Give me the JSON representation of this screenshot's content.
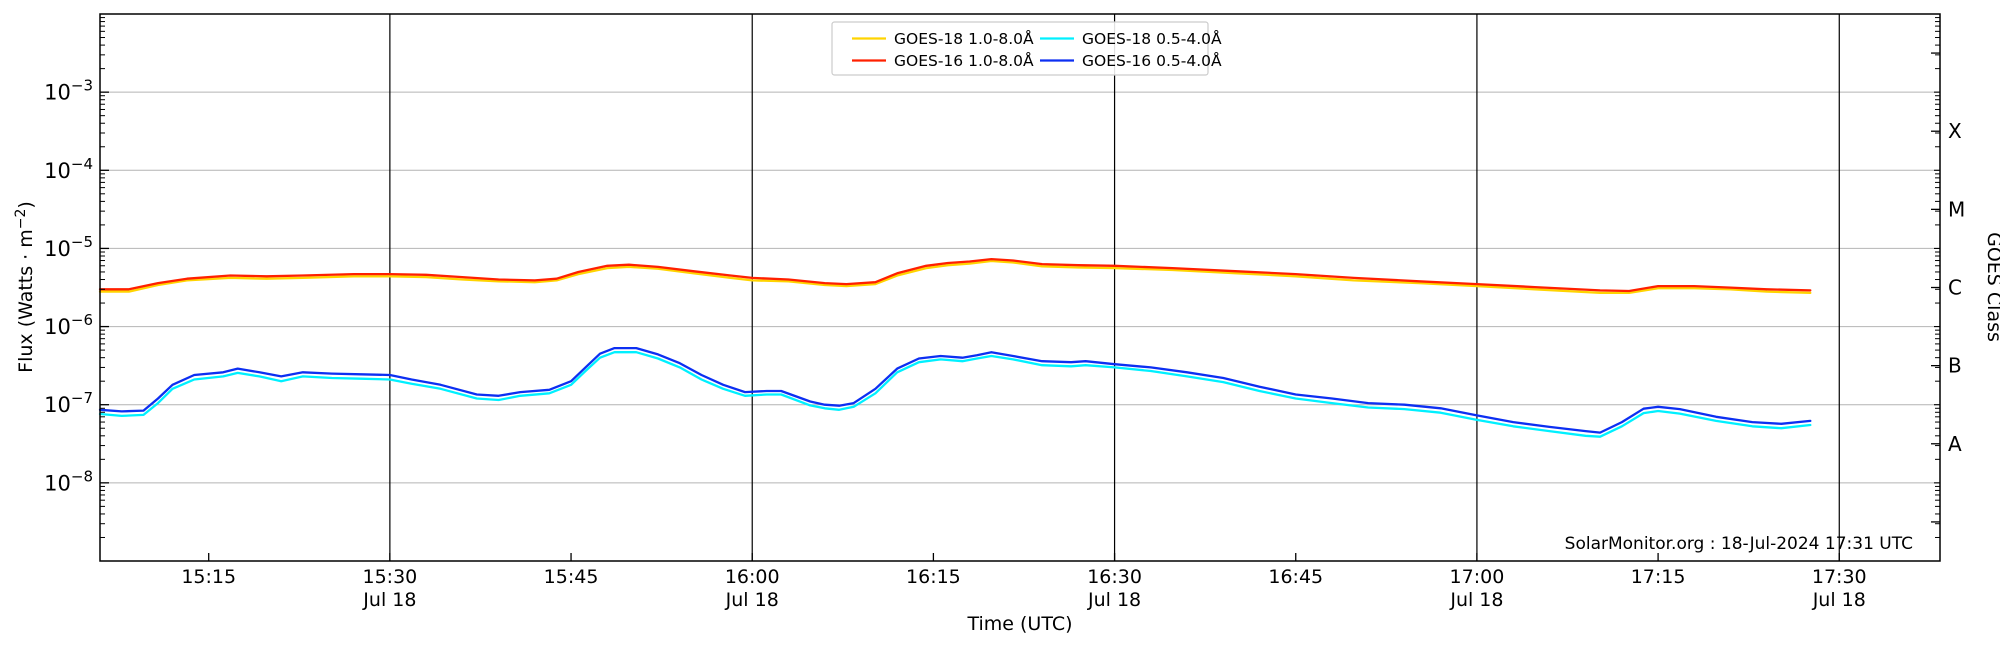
{
  "chart_data": {
    "type": "line",
    "title": "",
    "xlabel": "Time (UTC)",
    "ylabel": "Flux (Watts · m⁻²)",
    "ylabel_parts": {
      "pre": "Flux (Watts · m",
      "sup": "−2",
      "post": ")"
    },
    "ylabel_right": "GOES Class",
    "y_scale": "log",
    "y_range": [
      1e-09,
      0.01
    ],
    "x_range_hours": [
      15.1,
      17.639
    ],
    "grid_on": true,
    "watermark": "SolarMonitor.org : 18-Jul-2024 17:31 UTC",
    "x_ticks": [
      {
        "t": 15.25,
        "label": "15:15",
        "date": null
      },
      {
        "t": 15.5,
        "label": "15:30",
        "date": "Jul 18"
      },
      {
        "t": 15.75,
        "label": "15:45",
        "date": null
      },
      {
        "t": 16.0,
        "label": "16:00",
        "date": "Jul 18"
      },
      {
        "t": 16.25,
        "label": "16:15",
        "date": null
      },
      {
        "t": 16.5,
        "label": "16:30",
        "date": "Jul 18"
      },
      {
        "t": 16.75,
        "label": "16:45",
        "date": null
      },
      {
        "t": 17.0,
        "label": "17:00",
        "date": "Jul 18"
      },
      {
        "t": 17.25,
        "label": "17:15",
        "date": null
      },
      {
        "t": 17.5,
        "label": "17:30",
        "date": "Jul 18"
      }
    ],
    "date_lines_hours": [
      15.5,
      16.0,
      16.5,
      17.0,
      17.5
    ],
    "y_ticks": [
      {
        "exp": -3,
        "base": "10",
        "sup": "−3"
      },
      {
        "exp": -4,
        "base": "10",
        "sup": "−4"
      },
      {
        "exp": -5,
        "base": "10",
        "sup": "−5"
      },
      {
        "exp": -6,
        "base": "10",
        "sup": "−6"
      },
      {
        "exp": -7,
        "base": "10",
        "sup": "−7"
      },
      {
        "exp": -8,
        "base": "10",
        "sup": "−8"
      }
    ],
    "goes_classes": [
      {
        "label": "X",
        "center_log_flux": -3.5
      },
      {
        "label": "M",
        "center_log_flux": -4.5
      },
      {
        "label": "C",
        "center_log_flux": -5.5
      },
      {
        "label": "B",
        "center_log_flux": -6.5
      },
      {
        "label": "A",
        "center_log_flux": -7.5
      }
    ],
    "legend": [
      {
        "name": "GOES-18 1.0-8.0Å",
        "color": "#ffd400"
      },
      {
        "name": "GOES-16 1.0-8.0Å",
        "color": "#ff2000"
      },
      {
        "name": "GOES-18 0.5-4.0Å",
        "color": "#00f0ff"
      },
      {
        "name": "GOES-16 0.5-4.0Å",
        "color": "#0c2ff2"
      }
    ],
    "series": [
      {
        "name": "GOES-18 1.0-8.0Å",
        "color": "#ffd400",
        "width": 2.3,
        "points": [
          [
            15.1,
            2.8e-06
          ],
          [
            15.14,
            2.8e-06
          ],
          [
            15.18,
            3.4e-06
          ],
          [
            15.22,
            3.9e-06
          ],
          [
            15.28,
            4.2e-06
          ],
          [
            15.33,
            4.1e-06
          ],
          [
            15.38,
            4.2e-06
          ],
          [
            15.45,
            4.4e-06
          ],
          [
            15.5,
            4.4e-06
          ],
          [
            15.55,
            4.3e-06
          ],
          [
            15.6,
            4e-06
          ],
          [
            15.65,
            3.8e-06
          ],
          [
            15.7,
            3.7e-06
          ],
          [
            15.73,
            3.9e-06
          ],
          [
            15.76,
            4.7e-06
          ],
          [
            15.8,
            5.6e-06
          ],
          [
            15.83,
            5.8e-06
          ],
          [
            15.87,
            5.5e-06
          ],
          [
            15.92,
            4.8e-06
          ],
          [
            15.97,
            4.2e-06
          ],
          [
            16.0,
            3.9e-06
          ],
          [
            16.05,
            3.8e-06
          ],
          [
            16.1,
            3.4e-06
          ],
          [
            16.13,
            3.3e-06
          ],
          [
            16.17,
            3.5e-06
          ],
          [
            16.2,
            4.5e-06
          ],
          [
            16.24,
            5.6e-06
          ],
          [
            16.27,
            6.1e-06
          ],
          [
            16.3,
            6.4e-06
          ],
          [
            16.33,
            6.9e-06
          ],
          [
            16.36,
            6.6e-06
          ],
          [
            16.4,
            5.9e-06
          ],
          [
            16.45,
            5.7e-06
          ],
          [
            16.5,
            5.6e-06
          ],
          [
            16.58,
            5.3e-06
          ],
          [
            16.67,
            4.8e-06
          ],
          [
            16.75,
            4.4e-06
          ],
          [
            16.83,
            3.9e-06
          ],
          [
            16.92,
            3.6e-06
          ],
          [
            17.0,
            3.3e-06
          ],
          [
            17.08,
            3e-06
          ],
          [
            17.17,
            2.7e-06
          ],
          [
            17.21,
            2.7e-06
          ],
          [
            17.25,
            3.1e-06
          ],
          [
            17.3,
            3.1e-06
          ],
          [
            17.35,
            3e-06
          ],
          [
            17.4,
            2.8e-06
          ],
          [
            17.46,
            2.7e-06
          ]
        ]
      },
      {
        "name": "GOES-18 0.5-4.0Å",
        "color": "#00f0ff",
        "width": 2.3,
        "points": [
          [
            15.1,
            7.6e-08
          ],
          [
            15.13,
            7.2e-08
          ],
          [
            15.16,
            7.4e-08
          ],
          [
            15.18,
            1.05e-07
          ],
          [
            15.2,
            1.6e-07
          ],
          [
            15.23,
            2.1e-07
          ],
          [
            15.27,
            2.3e-07
          ],
          [
            15.29,
            2.55e-07
          ],
          [
            15.32,
            2.3e-07
          ],
          [
            15.35,
            2e-07
          ],
          [
            15.38,
            2.3e-07
          ],
          [
            15.42,
            2.2e-07
          ],
          [
            15.46,
            2.15e-07
          ],
          [
            15.5,
            2.1e-07
          ],
          [
            15.53,
            1.85e-07
          ],
          [
            15.57,
            1.6e-07
          ],
          [
            15.62,
            1.2e-07
          ],
          [
            15.65,
            1.15e-07
          ],
          [
            15.68,
            1.3e-07
          ],
          [
            15.72,
            1.4e-07
          ],
          [
            15.75,
            1.8e-07
          ],
          [
            15.77,
            2.7e-07
          ],
          [
            15.79,
            4e-07
          ],
          [
            15.81,
            4.7e-07
          ],
          [
            15.84,
            4.7e-07
          ],
          [
            15.87,
            3.9e-07
          ],
          [
            15.9,
            3e-07
          ],
          [
            15.93,
            2.1e-07
          ],
          [
            15.96,
            1.6e-07
          ],
          [
            15.99,
            1.3e-07
          ],
          [
            16.02,
            1.35e-07
          ],
          [
            16.04,
            1.35e-07
          ],
          [
            16.08,
            9.8e-08
          ],
          [
            16.1,
            9e-08
          ],
          [
            16.12,
            8.6e-08
          ],
          [
            16.14,
            9.4e-08
          ],
          [
            16.17,
            1.4e-07
          ],
          [
            16.2,
            2.6e-07
          ],
          [
            16.23,
            3.5e-07
          ],
          [
            16.26,
            3.8e-07
          ],
          [
            16.29,
            3.6e-07
          ],
          [
            16.31,
            3.9e-07
          ],
          [
            16.33,
            4.2e-07
          ],
          [
            16.36,
            3.8e-07
          ],
          [
            16.4,
            3.2e-07
          ],
          [
            16.44,
            3.1e-07
          ],
          [
            16.46,
            3.2e-07
          ],
          [
            16.5,
            3e-07
          ],
          [
            16.55,
            2.7e-07
          ],
          [
            16.6,
            2.3e-07
          ],
          [
            16.65,
            1.95e-07
          ],
          [
            16.7,
            1.5e-07
          ],
          [
            16.75,
            1.2e-07
          ],
          [
            16.8,
            1.05e-07
          ],
          [
            16.85,
            9.2e-08
          ],
          [
            16.9,
            8.8e-08
          ],
          [
            16.95,
            7.9e-08
          ],
          [
            17.0,
            6.4e-08
          ],
          [
            17.05,
            5.3e-08
          ],
          [
            17.1,
            4.6e-08
          ],
          [
            17.15,
            4e-08
          ],
          [
            17.17,
            3.9e-08
          ],
          [
            17.2,
            5.3e-08
          ],
          [
            17.23,
            7.8e-08
          ],
          [
            17.25,
            8.3e-08
          ],
          [
            17.28,
            7.7e-08
          ],
          [
            17.33,
            6.2e-08
          ],
          [
            17.38,
            5.3e-08
          ],
          [
            17.42,
            5e-08
          ],
          [
            17.46,
            5.5e-08
          ]
        ]
      },
      {
        "name": "GOES-16 1.0-8.0Å",
        "color": "#ff2000",
        "width": 2.3,
        "points": [
          [
            15.1,
            3e-06
          ],
          [
            15.14,
            3e-06
          ],
          [
            15.18,
            3.6e-06
          ],
          [
            15.22,
            4.1e-06
          ],
          [
            15.28,
            4.5e-06
          ],
          [
            15.33,
            4.4e-06
          ],
          [
            15.38,
            4.5e-06
          ],
          [
            15.45,
            4.7e-06
          ],
          [
            15.5,
            4.7e-06
          ],
          [
            15.55,
            4.6e-06
          ],
          [
            15.6,
            4.3e-06
          ],
          [
            15.65,
            4e-06
          ],
          [
            15.7,
            3.9e-06
          ],
          [
            15.73,
            4.1e-06
          ],
          [
            15.76,
            5e-06
          ],
          [
            15.8,
            6e-06
          ],
          [
            15.83,
            6.2e-06
          ],
          [
            15.87,
            5.8e-06
          ],
          [
            15.92,
            5.1e-06
          ],
          [
            15.97,
            4.5e-06
          ],
          [
            16.0,
            4.2e-06
          ],
          [
            16.05,
            4e-06
          ],
          [
            16.1,
            3.6e-06
          ],
          [
            16.13,
            3.5e-06
          ],
          [
            16.17,
            3.7e-06
          ],
          [
            16.2,
            4.8e-06
          ],
          [
            16.24,
            6e-06
          ],
          [
            16.27,
            6.5e-06
          ],
          [
            16.3,
            6.8e-06
          ],
          [
            16.33,
            7.3e-06
          ],
          [
            16.36,
            7e-06
          ],
          [
            16.4,
            6.3e-06
          ],
          [
            16.45,
            6.1e-06
          ],
          [
            16.5,
            6e-06
          ],
          [
            16.58,
            5.6e-06
          ],
          [
            16.67,
            5.1e-06
          ],
          [
            16.75,
            4.7e-06
          ],
          [
            16.83,
            4.2e-06
          ],
          [
            16.92,
            3.8e-06
          ],
          [
            17.0,
            3.5e-06
          ],
          [
            17.08,
            3.2e-06
          ],
          [
            17.17,
            2.9e-06
          ],
          [
            17.21,
            2.85e-06
          ],
          [
            17.25,
            3.3e-06
          ],
          [
            17.3,
            3.3e-06
          ],
          [
            17.35,
            3.15e-06
          ],
          [
            17.4,
            3e-06
          ],
          [
            17.46,
            2.9e-06
          ]
        ]
      },
      {
        "name": "GOES-16 0.5-4.0Å",
        "color": "#0c2ff2",
        "width": 2.3,
        "points": [
          [
            15.1,
            8.6e-08
          ],
          [
            15.13,
            8.2e-08
          ],
          [
            15.16,
            8.4e-08
          ],
          [
            15.18,
            1.2e-07
          ],
          [
            15.2,
            1.8e-07
          ],
          [
            15.23,
            2.4e-07
          ],
          [
            15.27,
            2.6e-07
          ],
          [
            15.29,
            2.9e-07
          ],
          [
            15.32,
            2.6e-07
          ],
          [
            15.35,
            2.3e-07
          ],
          [
            15.38,
            2.6e-07
          ],
          [
            15.42,
            2.5e-07
          ],
          [
            15.46,
            2.45e-07
          ],
          [
            15.5,
            2.4e-07
          ],
          [
            15.53,
            2.1e-07
          ],
          [
            15.57,
            1.8e-07
          ],
          [
            15.62,
            1.35e-07
          ],
          [
            15.65,
            1.3e-07
          ],
          [
            15.68,
            1.45e-07
          ],
          [
            15.72,
            1.55e-07
          ],
          [
            15.75,
            2e-07
          ],
          [
            15.77,
            3e-07
          ],
          [
            15.79,
            4.5e-07
          ],
          [
            15.81,
            5.3e-07
          ],
          [
            15.84,
            5.3e-07
          ],
          [
            15.87,
            4.4e-07
          ],
          [
            15.9,
            3.4e-07
          ],
          [
            15.93,
            2.4e-07
          ],
          [
            15.96,
            1.8e-07
          ],
          [
            15.99,
            1.45e-07
          ],
          [
            16.02,
            1.5e-07
          ],
          [
            16.04,
            1.5e-07
          ],
          [
            16.08,
            1.1e-07
          ],
          [
            16.1,
            1e-07
          ],
          [
            16.12,
            9.7e-08
          ],
          [
            16.14,
            1.05e-07
          ],
          [
            16.17,
            1.6e-07
          ],
          [
            16.2,
            2.9e-07
          ],
          [
            16.23,
            3.9e-07
          ],
          [
            16.26,
            4.2e-07
          ],
          [
            16.29,
            4e-07
          ],
          [
            16.31,
            4.3e-07
          ],
          [
            16.33,
            4.7e-07
          ],
          [
            16.36,
            4.2e-07
          ],
          [
            16.4,
            3.6e-07
          ],
          [
            16.44,
            3.5e-07
          ],
          [
            16.46,
            3.6e-07
          ],
          [
            16.5,
            3.3e-07
          ],
          [
            16.55,
            3e-07
          ],
          [
            16.6,
            2.6e-07
          ],
          [
            16.65,
            2.2e-07
          ],
          [
            16.7,
            1.7e-07
          ],
          [
            16.75,
            1.35e-07
          ],
          [
            16.8,
            1.2e-07
          ],
          [
            16.85,
            1.05e-07
          ],
          [
            16.9,
            1e-07
          ],
          [
            16.95,
            9e-08
          ],
          [
            17.0,
            7.3e-08
          ],
          [
            17.05,
            6e-08
          ],
          [
            17.1,
            5.2e-08
          ],
          [
            17.15,
            4.6e-08
          ],
          [
            17.17,
            4.4e-08
          ],
          [
            17.2,
            6e-08
          ],
          [
            17.23,
            8.9e-08
          ],
          [
            17.25,
            9.4e-08
          ],
          [
            17.28,
            8.8e-08
          ],
          [
            17.33,
            7e-08
          ],
          [
            17.38,
            6e-08
          ],
          [
            17.42,
            5.7e-08
          ],
          [
            17.46,
            6.2e-08
          ]
        ]
      }
    ]
  }
}
